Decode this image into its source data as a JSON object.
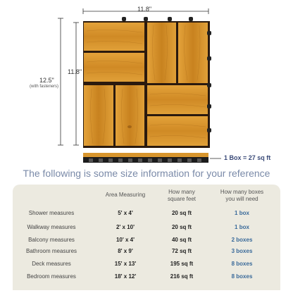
{
  "dimensions": {
    "width": "11.8\"",
    "height_outer": "12.5\"",
    "height_outer_note": "(with fasteners)",
    "height_inner": "11.8\""
  },
  "box_note": "1 Box = 27 sq ft",
  "heading": "The following is some size information for your reference",
  "table": {
    "headers": [
      "Area Measuring",
      "How many\nsquare feet",
      "How many boxes\nyou will need"
    ],
    "rows": [
      {
        "label": "Shower measures",
        "area": "5' x 4'",
        "sqft": "20 sq ft",
        "boxes": "1 box"
      },
      {
        "label": "Walkway measures",
        "area": "2' x 10'",
        "sqft": "20 sq ft",
        "boxes": "1 box"
      },
      {
        "label": "Balcony measures",
        "area": "10' x 4'",
        "sqft": "40 sq ft",
        "boxes": "2 boxes"
      },
      {
        "label": "Bathroom measures",
        "area": "8' x 9'",
        "sqft": "72 sq ft",
        "boxes": "3 boxes"
      },
      {
        "label": "Deck measures",
        "area": "15' x 13'",
        "sqft": "195 sq ft",
        "boxes": "8 boxes"
      },
      {
        "label": "Bedroom measures",
        "area": "18' x 12'",
        "sqft": "216 sq ft",
        "boxes": "8 boxes"
      }
    ]
  },
  "colors": {
    "wood": "#d8962e",
    "wood_dark": "#b9761c",
    "panel": "#eceae0",
    "heading": "#7a8aa8",
    "boxes": "#3a6a9a"
  }
}
